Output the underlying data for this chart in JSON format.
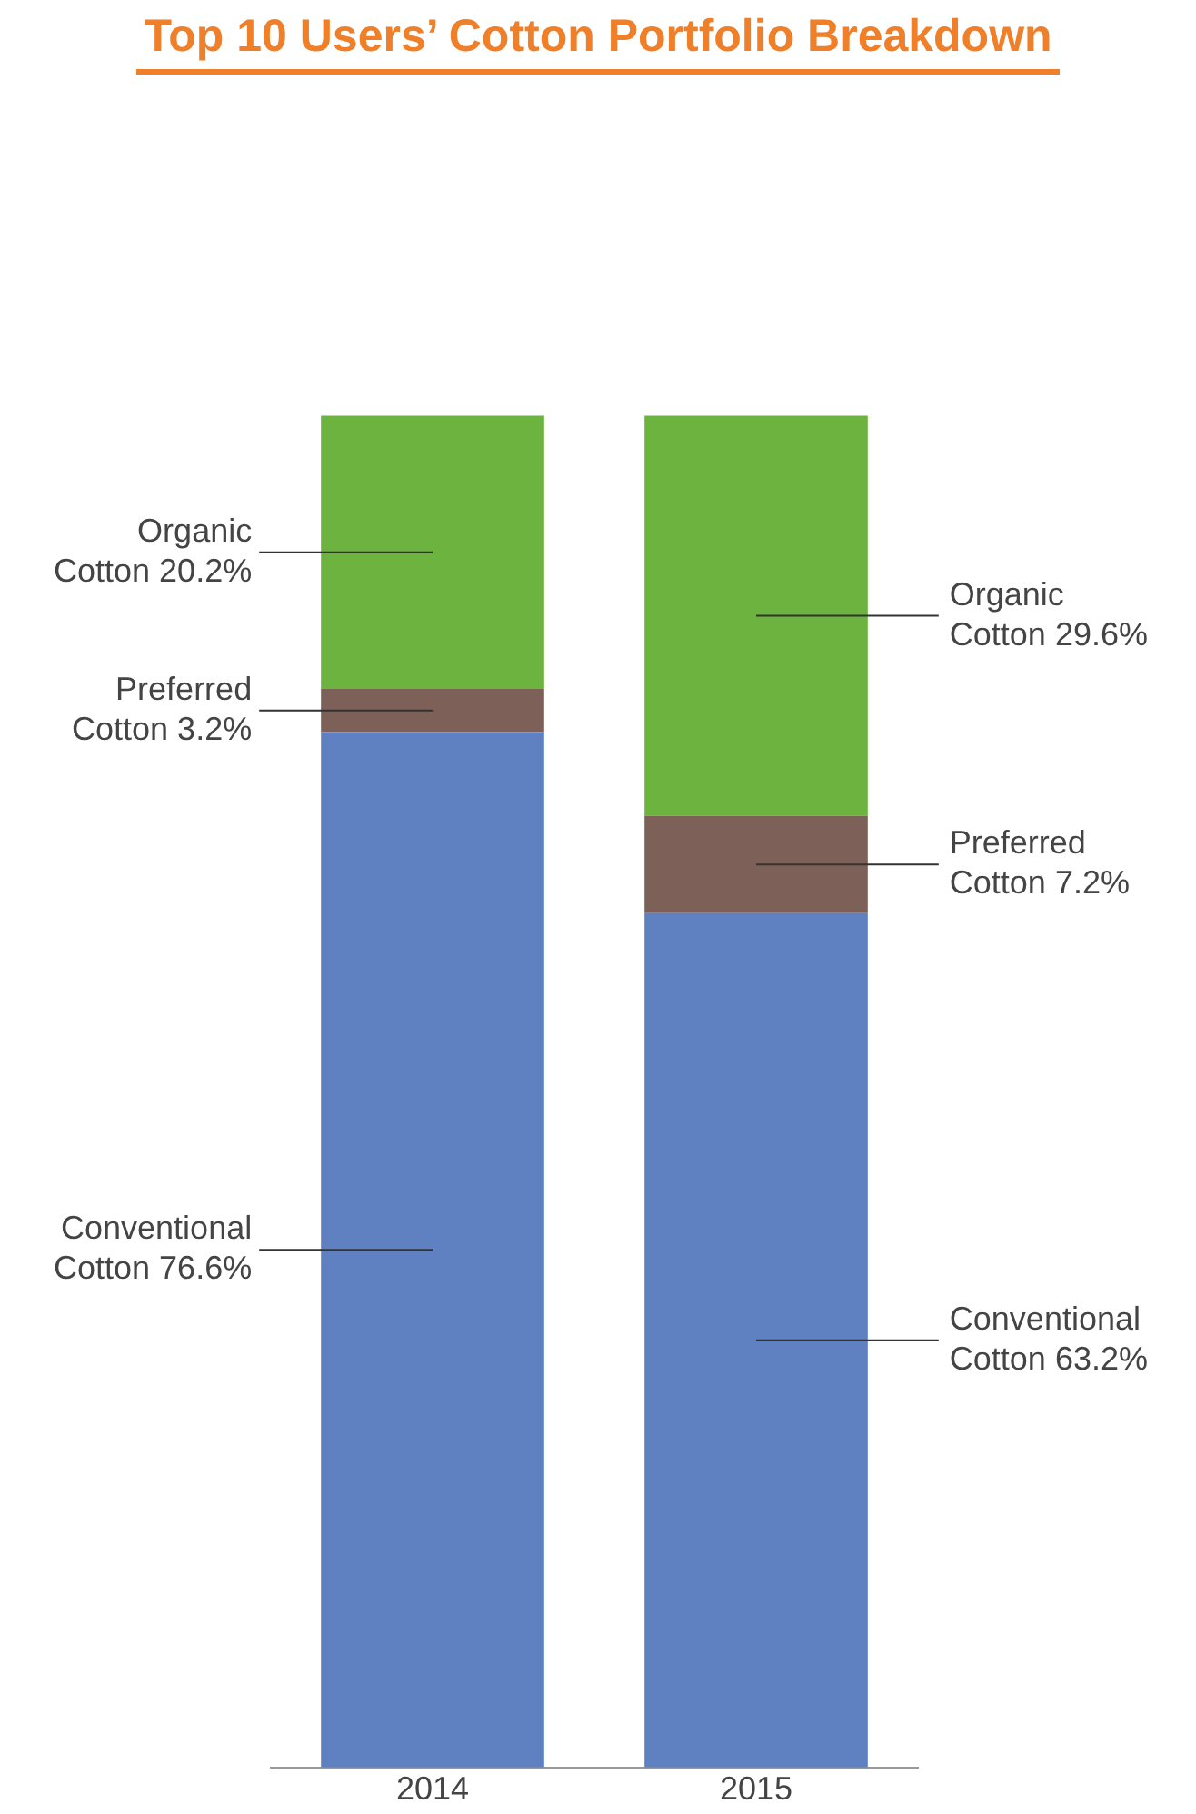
{
  "chart_data": {
    "type": "bar",
    "title": "Top 10 Users’ Cotton Portfolio Breakdown",
    "categories": [
      "2014",
      "2015"
    ],
    "stacked": true,
    "grid": false,
    "legend": false,
    "tick_labels": "x",
    "series": [
      {
        "color": "#5f80c1",
        "values": [
          76.6,
          63.2
        ],
        "value_labels": [
          "Conventional Cotton 76.6%",
          "Conventional Cotton 63.2%"
        ]
      },
      {
        "color": "#7d6158",
        "values": [
          3.2,
          7.2
        ],
        "value_labels": [
          "Preferred Cotton 3.2%",
          "Preferred Cotton 7.2%"
        ]
      },
      {
        "color": "#6db33f",
        "values": [
          20.2,
          29.6
        ],
        "value_labels": [
          "Organic Cotton 20.2%",
          "Organic Cotton 29.6%"
        ]
      }
    ]
  }
}
